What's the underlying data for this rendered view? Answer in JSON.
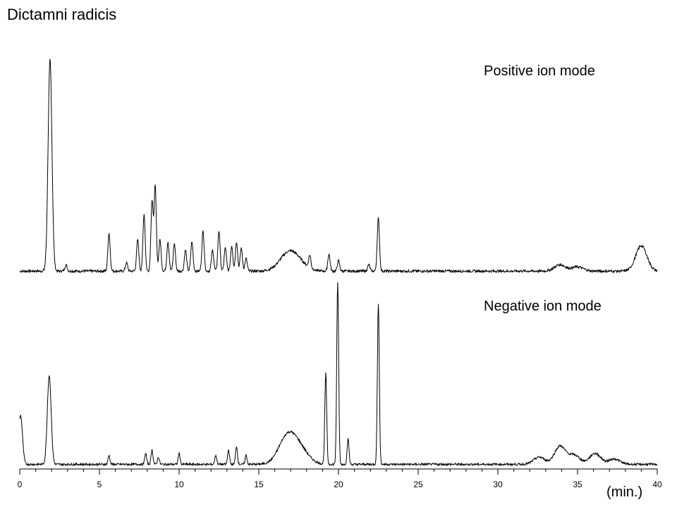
{
  "title": "Dictamni radicis",
  "chart_data": [
    {
      "type": "line",
      "title": "Dictamni radicis",
      "annotation": "Positive ion mode",
      "xlabel": "(min.)",
      "ylabel": "",
      "xlim": [
        0,
        40
      ],
      "ylim": [
        0,
        1
      ],
      "grid": false,
      "baseline": 0.01,
      "peaks": [
        {
          "x": 1.9,
          "y": 1.0
        },
        {
          "x": 2.9,
          "y": 0.03
        },
        {
          "x": 5.6,
          "y": 0.18
        },
        {
          "x": 6.7,
          "y": 0.04
        },
        {
          "x": 7.4,
          "y": 0.15
        },
        {
          "x": 7.8,
          "y": 0.27
        },
        {
          "x": 8.3,
          "y": 0.33
        },
        {
          "x": 8.5,
          "y": 0.4
        },
        {
          "x": 8.8,
          "y": 0.15
        },
        {
          "x": 9.3,
          "y": 0.14
        },
        {
          "x": 9.7,
          "y": 0.13
        },
        {
          "x": 10.4,
          "y": 0.1
        },
        {
          "x": 10.8,
          "y": 0.14
        },
        {
          "x": 11.5,
          "y": 0.19
        },
        {
          "x": 12.1,
          "y": 0.1
        },
        {
          "x": 12.5,
          "y": 0.19
        },
        {
          "x": 12.9,
          "y": 0.11
        },
        {
          "x": 13.3,
          "y": 0.12
        },
        {
          "x": 13.6,
          "y": 0.14
        },
        {
          "x": 13.9,
          "y": 0.11
        },
        {
          "x": 14.2,
          "y": 0.06
        },
        {
          "x": 16.8,
          "y": 0.07
        },
        {
          "x": 17.4,
          "y": 0.04
        },
        {
          "x": 18.2,
          "y": 0.06
        },
        {
          "x": 19.4,
          "y": 0.08
        },
        {
          "x": 20.0,
          "y": 0.05
        },
        {
          "x": 21.9,
          "y": 0.03
        },
        {
          "x": 22.5,
          "y": 0.25
        },
        {
          "x": 33.9,
          "y": 0.03
        },
        {
          "x": 35.0,
          "y": 0.02
        },
        {
          "x": 39.0,
          "y": 0.12
        }
      ]
    },
    {
      "type": "line",
      "annotation": "Negative ion mode",
      "xlabel": "(min.)",
      "ylabel": "",
      "xlim": [
        0,
        40
      ],
      "ylim": [
        0,
        1
      ],
      "grid": false,
      "baseline": 0.01,
      "peaks": [
        {
          "x": 0.05,
          "y": 0.27
        },
        {
          "x": 1.85,
          "y": 0.49
        },
        {
          "x": 5.6,
          "y": 0.05
        },
        {
          "x": 7.9,
          "y": 0.06
        },
        {
          "x": 8.3,
          "y": 0.08
        },
        {
          "x": 8.7,
          "y": 0.04
        },
        {
          "x": 10.0,
          "y": 0.06
        },
        {
          "x": 12.3,
          "y": 0.05
        },
        {
          "x": 13.1,
          "y": 0.08
        },
        {
          "x": 13.6,
          "y": 0.1
        },
        {
          "x": 14.2,
          "y": 0.05
        },
        {
          "x": 16.8,
          "y": 0.15
        },
        {
          "x": 17.6,
          "y": 0.07
        },
        {
          "x": 19.2,
          "y": 0.5
        },
        {
          "x": 19.95,
          "y": 1.0
        },
        {
          "x": 20.6,
          "y": 0.14
        },
        {
          "x": 22.5,
          "y": 0.88
        },
        {
          "x": 32.6,
          "y": 0.04
        },
        {
          "x": 33.9,
          "y": 0.1
        },
        {
          "x": 34.8,
          "y": 0.05
        },
        {
          "x": 36.1,
          "y": 0.06
        },
        {
          "x": 37.3,
          "y": 0.03
        }
      ]
    }
  ],
  "x_axis": {
    "ticks": [
      "0",
      "5",
      "10",
      "15",
      "20",
      "25",
      "30",
      "35",
      "40"
    ],
    "unit_label": "(min.)"
  }
}
